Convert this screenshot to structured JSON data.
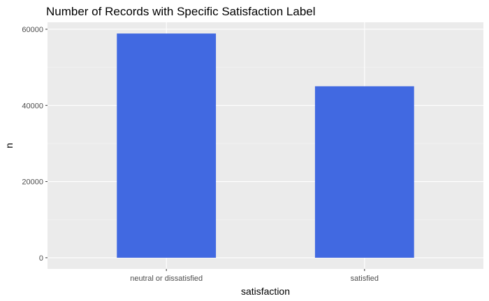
{
  "chart_data": {
    "type": "bar",
    "title": "Number of Records with Specific Satisfaction Label",
    "xlabel": "satisfaction",
    "ylabel": "n",
    "categories": [
      "neutral or dissatisfied",
      "satisfied"
    ],
    "values": [
      58879,
      45025
    ],
    "ylim": [
      -2944,
      61823
    ],
    "yticks": [
      0,
      20000,
      40000,
      60000
    ],
    "ytick_labels": [
      "0",
      "20000",
      "40000",
      "60000"
    ],
    "grid": true,
    "legend": "none",
    "colors": {
      "bar": "#4169E1",
      "panel_background": "#EBEBEB",
      "grid_major": "#FFFFFF",
      "grid_minor": "#F5F5F5"
    }
  }
}
